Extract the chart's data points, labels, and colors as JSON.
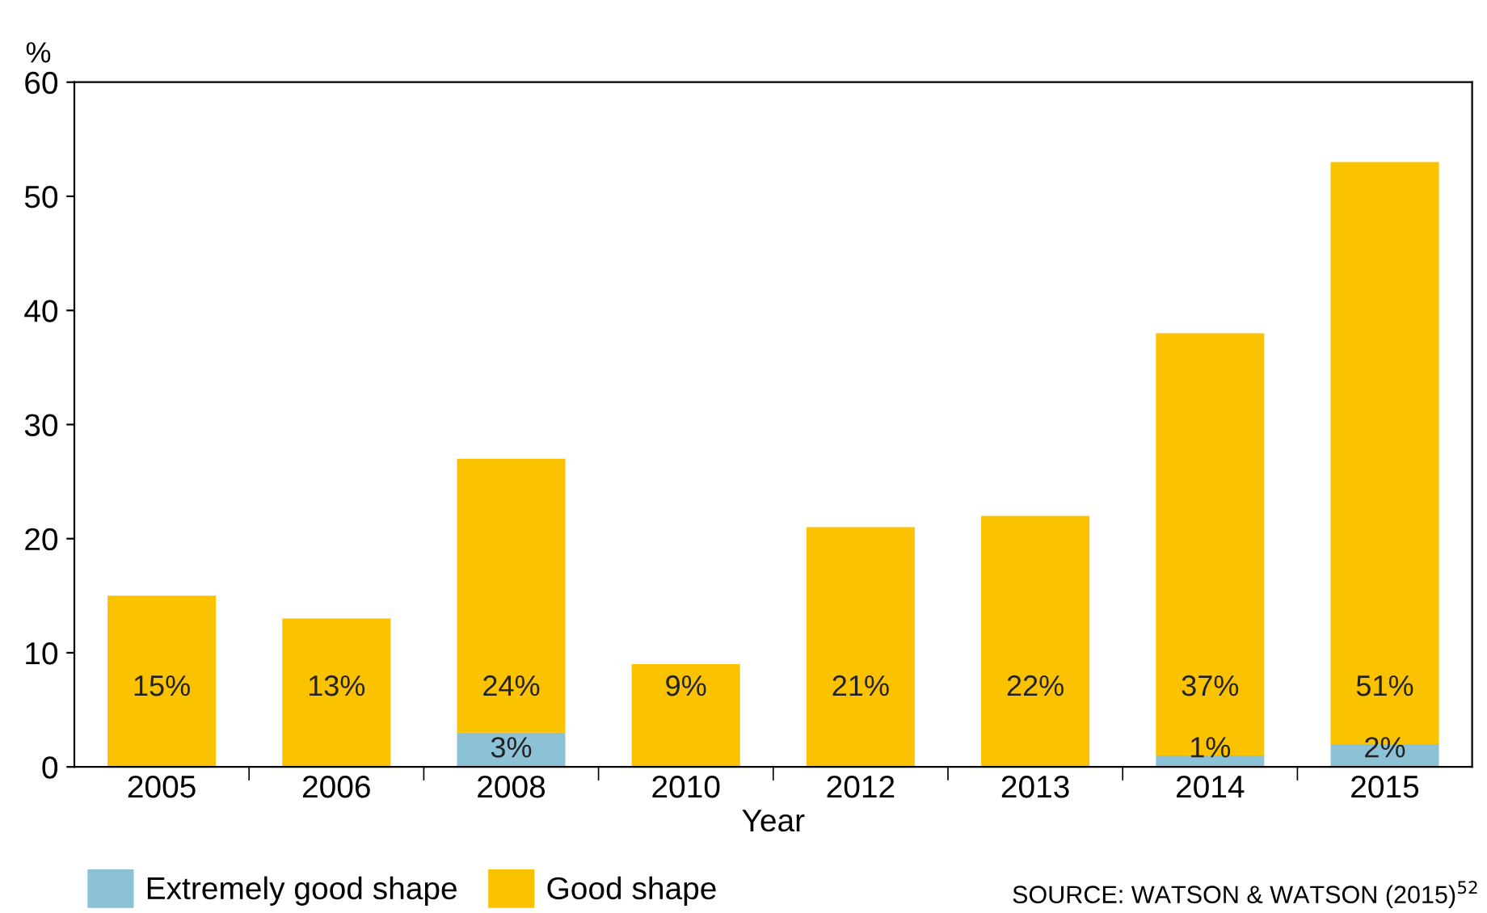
{
  "chart_data": {
    "type": "bar",
    "stacked": true,
    "xlabel": "Year",
    "ylabel": "%",
    "categories": [
      "2005",
      "2006",
      "2008",
      "2010",
      "2012",
      "2013",
      "2014",
      "2015"
    ],
    "series": [
      {
        "name": "Extremely good shape",
        "color": "#8dc1d6",
        "values": [
          0,
          0,
          3,
          0,
          0,
          0,
          1,
          2
        ],
        "value_labels": [
          null,
          null,
          "3%",
          null,
          null,
          null,
          "1%",
          "2%"
        ]
      },
      {
        "name": "Good shape",
        "color": "#fbc200",
        "values": [
          15,
          13,
          24,
          9,
          21,
          22,
          37,
          51
        ],
        "value_labels": [
          "15%",
          "13%",
          "24%",
          "9%",
          "21%",
          "22%",
          "37%",
          "51%"
        ]
      }
    ],
    "ylim": [
      0,
      60
    ],
    "yticks": [
      0,
      10,
      20,
      30,
      40,
      50,
      60
    ],
    "grid": false,
    "legend": "bottom left",
    "annotations": [
      "SOURCE: WATSON & WATSON (2015)$^{52}$"
    ]
  }
}
